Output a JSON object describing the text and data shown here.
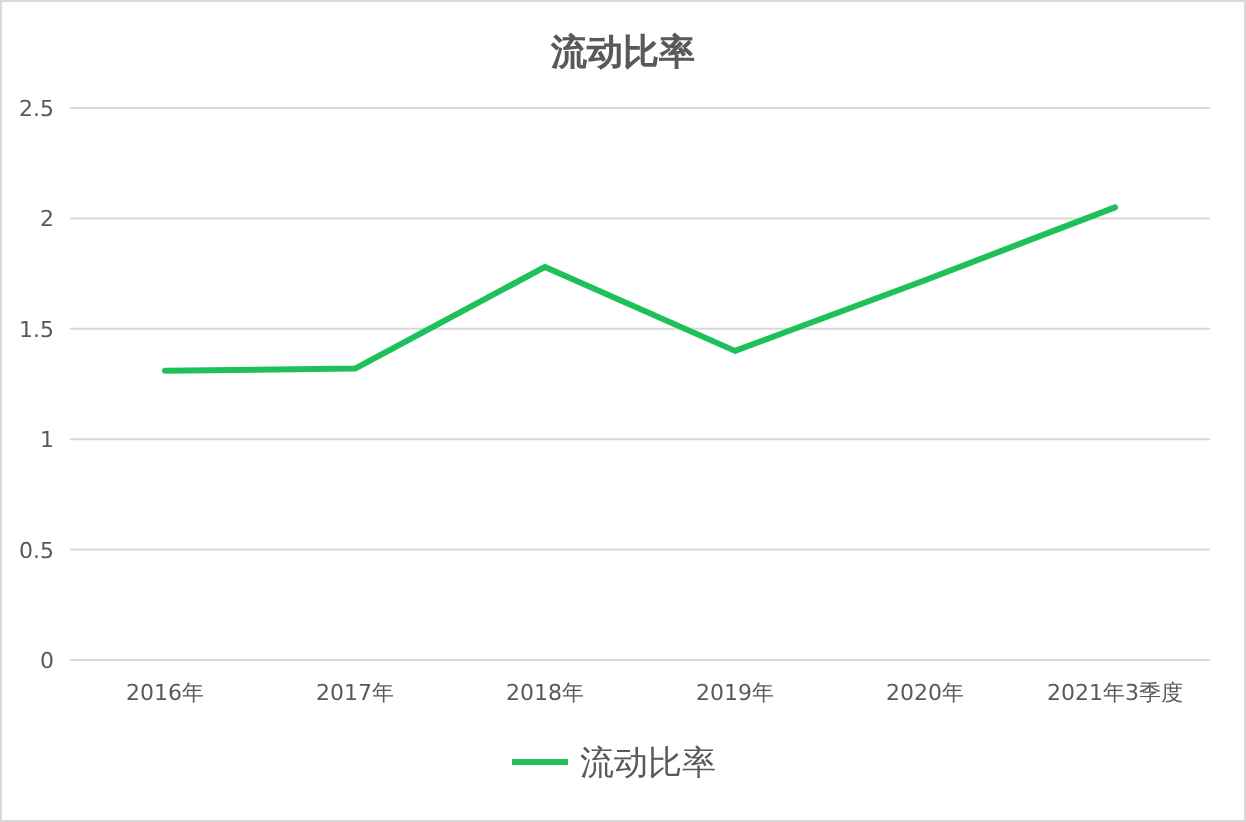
{
  "chart_data": {
    "type": "line",
    "title": "流动比率",
    "categories": [
      "2016年",
      "2017年",
      "2018年",
      "2019年",
      "2020年",
      "2021年3季度"
    ],
    "series": [
      {
        "name": "流动比率",
        "color": "#1ec05a",
        "values": [
          1.31,
          1.32,
          1.78,
          1.4,
          1.72,
          2.05
        ]
      }
    ],
    "ylim": [
      0,
      2.5
    ],
    "yticks": [
      0,
      0.5,
      1,
      1.5,
      2,
      2.5
    ],
    "grid": "y",
    "legend": "bottom",
    "marker": "none",
    "line_style": "solid"
  }
}
